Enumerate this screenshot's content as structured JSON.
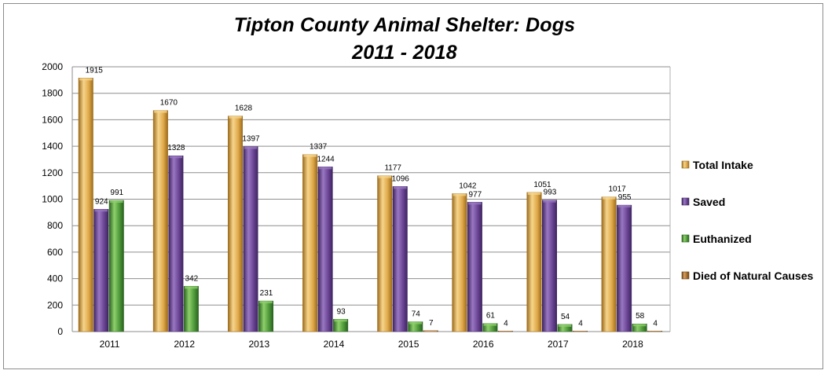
{
  "chart_data": {
    "type": "bar",
    "title": "Tipton County Animal Shelter: Dogs",
    "subtitle": "2011 - 2018",
    "xlabel": "",
    "ylabel": "",
    "ylim": [
      0,
      2000
    ],
    "yticks": [
      0,
      200,
      400,
      600,
      800,
      1000,
      1200,
      1400,
      1600,
      1800,
      2000
    ],
    "grid": true,
    "legend_position": "right",
    "categories": [
      "2011",
      "2012",
      "2013",
      "2014",
      "2015",
      "2016",
      "2017",
      "2018"
    ],
    "series": [
      {
        "name": "Total Intake",
        "color": "#e0a94a",
        "dark": "#9c6b1c",
        "light": "#f6d58c",
        "values": [
          1915,
          1670,
          1628,
          1337,
          1177,
          1042,
          1051,
          1017
        ],
        "labels": [
          "1915",
          "1670",
          "1628",
          "1337",
          "1177",
          "1042",
          "1051",
          "1017"
        ]
      },
      {
        "name": "Saved",
        "color": "#6b4595",
        "dark": "#3e2460",
        "light": "#9a78c2",
        "values": [
          924,
          1328,
          1397,
          1244,
          1096,
          977,
          993,
          955
        ],
        "labels": [
          "924",
          "1328",
          "1397",
          "1244",
          "1096",
          "977",
          "993",
          "955"
        ]
      },
      {
        "name": "Euthanized",
        "color": "#4f9a3a",
        "dark": "#2a6220",
        "light": "#8fd06c",
        "values": [
          991,
          342,
          231,
          93,
          74,
          61,
          54,
          58
        ],
        "labels": [
          "991",
          "342",
          "231",
          "93",
          "74",
          "61",
          "54",
          "58"
        ]
      },
      {
        "name": "Died of Natural Causes",
        "color": "#a86f2e",
        "dark": "#6e4316",
        "light": "#d5a063",
        "values": [
          0,
          0,
          0,
          0,
          7,
          4,
          4,
          4
        ],
        "labels": [
          "",
          "",
          "",
          "",
          "7",
          "4",
          "4",
          "4"
        ]
      }
    ]
  }
}
